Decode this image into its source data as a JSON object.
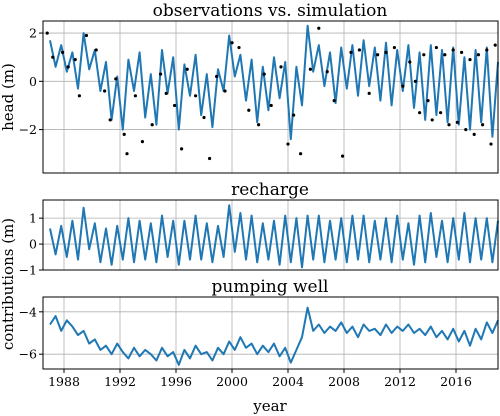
{
  "chart_data": [
    {
      "type": "line",
      "title": "observations vs. simulation",
      "ylabel": "head (m)",
      "xlim": [
        1986.5,
        2019.0
      ],
      "ylim": [
        -3.8,
        2.5
      ],
      "yticks": [
        -2,
        0,
        2
      ],
      "grid": true,
      "series": [
        {
          "kind": "simulated_line",
          "color": "#1f77b4",
          "x": [
            1987.0,
            1987.4,
            1987.8,
            1988.2,
            1988.6,
            1989.0,
            1989.4,
            1989.8,
            1990.2,
            1990.6,
            1991.0,
            1991.4,
            1991.8,
            1992.2,
            1992.6,
            1993.0,
            1993.4,
            1993.8,
            1994.2,
            1994.6,
            1995.0,
            1995.4,
            1995.8,
            1996.2,
            1996.6,
            1997.0,
            1997.4,
            1997.8,
            1998.2,
            1998.6,
            1999.0,
            1999.4,
            1999.8,
            2000.2,
            2000.6,
            2001.0,
            2001.4,
            2001.8,
            2002.2,
            2002.6,
            2003.0,
            2003.4,
            2003.8,
            2004.2,
            2004.6,
            2005.0,
            2005.4,
            2005.8,
            2006.2,
            2006.6,
            2007.0,
            2007.4,
            2007.8,
            2008.2,
            2008.6,
            2009.0,
            2009.4,
            2009.8,
            2010.2,
            2010.6,
            2011.0,
            2011.4,
            2011.8,
            2012.2,
            2012.6,
            2013.0,
            2013.4,
            2013.8,
            2014.2,
            2014.6,
            2015.0,
            2015.4,
            2015.8,
            2016.2,
            2016.6,
            2017.0,
            2017.4,
            2017.8,
            2018.2,
            2018.6,
            2019.0
          ],
          "y": [
            1.7,
            0.6,
            1.5,
            0.4,
            1.2,
            -0.3,
            2.0,
            0.5,
            1.3,
            -0.4,
            0.8,
            -1.6,
            0.2,
            -2.0,
            0.9,
            -0.4,
            1.2,
            -1.5,
            0.3,
            -1.8,
            1.3,
            -0.5,
            1.0,
            -2.0,
            0.7,
            -0.6,
            1.1,
            -1.4,
            0.3,
            -1.9,
            0.5,
            -0.4,
            1.9,
            0.2,
            1.1,
            -0.8,
            0.9,
            -1.7,
            0.6,
            -1.2,
            1.0,
            -0.7,
            0.8,
            -2.4,
            0.6,
            -1.0,
            2.3,
            0.4,
            1.5,
            -0.2,
            1.2,
            -0.9,
            1.4,
            -0.3,
            1.5,
            -0.6,
            1.7,
            -0.2,
            1.4,
            -0.8,
            1.6,
            -1.0,
            1.3,
            -0.4,
            1.5,
            -1.1,
            1.2,
            -1.6,
            1.5,
            -1.4,
            1.3,
            -1.7,
            1.4,
            -1.8,
            1.0,
            -2.0,
            1.3,
            -1.7,
            1.4,
            -2.3,
            0.8
          ]
        },
        {
          "kind": "observations",
          "color": "#000000",
          "x": [
            1986.8,
            1987.2,
            1987.9,
            1988.3,
            1988.8,
            1989.1,
            1989.6,
            1990.3,
            1990.9,
            1991.3,
            1991.7,
            1992.3,
            1992.5,
            1993.1,
            1993.6,
            1994.3,
            1994.9,
            1995.3,
            1995.9,
            1996.4,
            1996.8,
            1997.4,
            1998.0,
            1998.4,
            1998.9,
            1999.5,
            2000.0,
            2000.5,
            2001.2,
            2001.9,
            2002.3,
            2002.8,
            2003.5,
            2004.0,
            2004.4,
            2004.9,
            2005.6,
            2006.2,
            2006.8,
            2007.3,
            2007.9,
            2008.5,
            2009.1,
            2009.8,
            2010.4,
            2011.0,
            2011.6,
            2012.2,
            2012.7,
            2013.1,
            2013.4,
            2013.7,
            2014.0,
            2014.3,
            2014.6,
            2014.9,
            2015.2,
            2015.5,
            2015.8,
            2016.1,
            2016.4,
            2016.7,
            2017.0,
            2017.3,
            2017.6,
            2017.9,
            2018.2,
            2018.5,
            2018.8
          ],
          "y": [
            2.0,
            1.0,
            1.2,
            0.6,
            0.9,
            -0.6,
            1.9,
            1.3,
            -0.4,
            -1.6,
            0.1,
            -2.2,
            -3.0,
            -0.6,
            -2.5,
            -1.8,
            0.3,
            -0.5,
            -1.0,
            -2.8,
            0.5,
            -0.6,
            -1.5,
            -3.2,
            0.2,
            -0.4,
            1.6,
            1.4,
            -1.2,
            -1.8,
            0.3,
            -1.0,
            0.6,
            -2.6,
            -1.4,
            -3.0,
            0.5,
            2.2,
            0.4,
            -0.8,
            -3.1,
            1.2,
            1.3,
            -0.5,
            1.1,
            1.2,
            1.4,
            -0.2,
            0.8,
            0.0,
            -1.3,
            1.1,
            -0.8,
            -1.6,
            1.4,
            -1.3,
            1.1,
            -1.8,
            1.3,
            -1.7,
            1.2,
            -2.0,
            0.9,
            -2.2,
            1.1,
            -1.8,
            1.3,
            -2.6,
            1.5
          ]
        }
      ]
    },
    {
      "type": "line",
      "title": "recharge",
      "xlim": [
        1986.5,
        2019.0
      ],
      "ylim": [
        -1.0,
        1.7
      ],
      "yticks": [
        -1,
        0,
        1
      ],
      "grid": true,
      "series": [
        {
          "color": "#1f77b4",
          "x": [
            1987.0,
            1987.4,
            1987.8,
            1988.2,
            1988.6,
            1989.0,
            1989.4,
            1989.8,
            1990.2,
            1990.6,
            1991.0,
            1991.4,
            1991.8,
            1992.2,
            1992.6,
            1993.0,
            1993.4,
            1993.8,
            1994.2,
            1994.6,
            1995.0,
            1995.4,
            1995.8,
            1996.2,
            1996.6,
            1997.0,
            1997.4,
            1997.8,
            1998.2,
            1998.6,
            1999.0,
            1999.4,
            1999.8,
            2000.2,
            2000.6,
            2001.0,
            2001.4,
            2001.8,
            2002.2,
            2002.6,
            2003.0,
            2003.4,
            2003.8,
            2004.2,
            2004.6,
            2005.0,
            2005.4,
            2005.8,
            2006.2,
            2006.6,
            2007.0,
            2007.4,
            2007.8,
            2008.2,
            2008.6,
            2009.0,
            2009.4,
            2009.8,
            2010.2,
            2010.6,
            2011.0,
            2011.4,
            2011.8,
            2012.2,
            2012.6,
            2013.0,
            2013.4,
            2013.8,
            2014.2,
            2014.6,
            2015.0,
            2015.4,
            2015.8,
            2016.2,
            2016.6,
            2017.0,
            2017.4,
            2017.8,
            2018.2,
            2018.6,
            2019.0
          ],
          "y": [
            0.6,
            -0.4,
            0.7,
            -0.5,
            0.9,
            -0.6,
            1.4,
            -0.2,
            0.8,
            -0.7,
            0.6,
            -0.8,
            0.7,
            -0.6,
            1.0,
            -0.7,
            0.9,
            -0.6,
            0.8,
            -0.7,
            1.1,
            -0.5,
            0.9,
            -0.8,
            0.9,
            -0.6,
            1.1,
            -0.6,
            0.8,
            -0.7,
            0.7,
            -0.5,
            1.5,
            -0.3,
            1.2,
            -0.6,
            1.1,
            -0.7,
            0.8,
            -0.6,
            0.9,
            -0.8,
            1.1,
            -0.7,
            1.0,
            -0.9,
            1.1,
            -0.6,
            1.1,
            -0.7,
            0.9,
            -0.6,
            1.0,
            -0.7,
            1.1,
            -0.6,
            1.1,
            -0.7,
            0.9,
            -0.6,
            1.0,
            -0.7,
            1.1,
            -0.6,
            0.8,
            -0.8,
            1.1,
            -0.7,
            1.2,
            -0.5,
            0.9,
            -0.7,
            1.0,
            -0.6,
            1.2,
            -0.7,
            1.0,
            -0.6,
            1.0,
            -0.7,
            0.9
          ]
        }
      ]
    },
    {
      "type": "line",
      "title": "pumping well",
      "xlim": [
        1986.5,
        2019.0
      ],
      "ylim": [
        -6.7,
        -3.3
      ],
      "yticks": [
        -6,
        -4
      ],
      "grid": true,
      "xticks": [
        1988,
        1992,
        1996,
        2000,
        2004,
        2008,
        2012,
        2016
      ],
      "xlabel": "year",
      "series": [
        {
          "color": "#1f77b4",
          "x": [
            1987.0,
            1987.4,
            1987.8,
            1988.2,
            1988.6,
            1989.0,
            1989.4,
            1989.8,
            1990.2,
            1990.6,
            1991.0,
            1991.4,
            1991.8,
            1992.2,
            1992.6,
            1993.0,
            1993.4,
            1993.8,
            1994.2,
            1994.6,
            1995.0,
            1995.4,
            1995.8,
            1996.2,
            1996.6,
            1997.0,
            1997.4,
            1997.8,
            1998.2,
            1998.6,
            1999.0,
            1999.4,
            1999.8,
            2000.2,
            2000.6,
            2001.0,
            2001.4,
            2001.8,
            2002.2,
            2002.6,
            2003.0,
            2003.4,
            2003.8,
            2004.2,
            2004.6,
            2005.0,
            2005.4,
            2005.8,
            2006.2,
            2006.6,
            2007.0,
            2007.4,
            2007.8,
            2008.2,
            2008.6,
            2009.0,
            2009.4,
            2009.8,
            2010.2,
            2010.6,
            2011.0,
            2011.4,
            2011.8,
            2012.2,
            2012.6,
            2013.0,
            2013.4,
            2013.8,
            2014.2,
            2014.6,
            2015.0,
            2015.4,
            2015.8,
            2016.2,
            2016.6,
            2017.0,
            2017.4,
            2017.8,
            2018.2,
            2018.6,
            2019.0
          ],
          "y": [
            -4.6,
            -4.2,
            -4.9,
            -4.4,
            -4.7,
            -5.1,
            -4.9,
            -5.5,
            -5.3,
            -5.8,
            -5.6,
            -6.0,
            -5.5,
            -5.9,
            -6.2,
            -5.7,
            -6.1,
            -5.8,
            -6.0,
            -6.3,
            -5.7,
            -6.1,
            -5.9,
            -6.5,
            -5.8,
            -6.2,
            -5.6,
            -6.0,
            -5.9,
            -6.3,
            -5.7,
            -6.0,
            -5.4,
            -5.8,
            -5.2,
            -5.7,
            -5.5,
            -6.0,
            -5.6,
            -5.9,
            -5.5,
            -6.1,
            -5.7,
            -6.4,
            -5.8,
            -5.2,
            -3.8,
            -4.9,
            -4.6,
            -5.0,
            -4.7,
            -4.9,
            -4.5,
            -5.0,
            -4.7,
            -5.2,
            -4.6,
            -4.9,
            -4.8,
            -5.1,
            -4.6,
            -5.0,
            -4.7,
            -4.9,
            -4.6,
            -5.0,
            -4.8,
            -5.1,
            -4.7,
            -5.2,
            -4.9,
            -5.3,
            -4.8,
            -5.4,
            -4.9,
            -5.6,
            -4.8,
            -5.3,
            -4.5,
            -5.0,
            -4.4
          ]
        }
      ]
    }
  ],
  "figure": {
    "shared_ylabel": "contributions (m)"
  }
}
